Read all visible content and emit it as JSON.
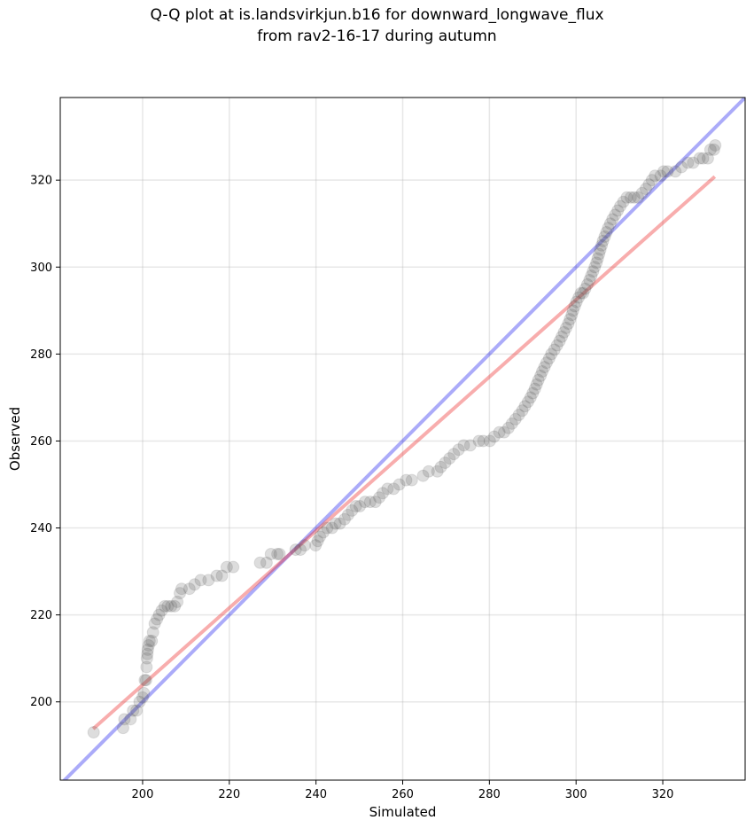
{
  "chart_data": {
    "type": "scatter",
    "title_line1": "Q-Q plot at is.landsvirkjun.b16 for downward_longwave_flux",
    "title_line2": "from rav2-16-17 during autumn",
    "xlabel": "Simulated",
    "ylabel": "Observed",
    "xlim": [
      181,
      339
    ],
    "ylim": [
      182,
      339
    ],
    "xticks": [
      200,
      220,
      240,
      260,
      280,
      300,
      320
    ],
    "yticks": [
      200,
      220,
      240,
      260,
      280,
      300,
      320
    ],
    "grid": true,
    "identity_line": {
      "name": "1:1 line",
      "color": "#0000ee",
      "from": [
        181,
        181
      ],
      "to": [
        339,
        339
      ]
    },
    "fit_line": {
      "name": "linear fit",
      "color": "#ee3333",
      "from": [
        188.6,
        193.8
      ],
      "to": [
        332.0,
        320.8
      ]
    },
    "points_color": "#555555",
    "points": [
      [
        188.7,
        193
      ],
      [
        195.5,
        194
      ],
      [
        195.8,
        196
      ],
      [
        197.2,
        196
      ],
      [
        197.8,
        198
      ],
      [
        198.6,
        198
      ],
      [
        199.3,
        200
      ],
      [
        200,
        201
      ],
      [
        200.3,
        202
      ],
      [
        200.5,
        205
      ],
      [
        200.8,
        205
      ],
      [
        200.9,
        208
      ],
      [
        201,
        210
      ],
      [
        201.1,
        211
      ],
      [
        201.2,
        212
      ],
      [
        201.4,
        213
      ],
      [
        201.6,
        214
      ],
      [
        202.1,
        214
      ],
      [
        202.4,
        216
      ],
      [
        202.8,
        218
      ],
      [
        203.3,
        219
      ],
      [
        203.8,
        220
      ],
      [
        204.4,
        221
      ],
      [
        205.1,
        222
      ],
      [
        205.8,
        222
      ],
      [
        206.6,
        222
      ],
      [
        207.4,
        222
      ],
      [
        208,
        223
      ],
      [
        208.6,
        225
      ],
      [
        209,
        226
      ],
      [
        210.8,
        226
      ],
      [
        212,
        227
      ],
      [
        213.4,
        228
      ],
      [
        215.2,
        228
      ],
      [
        217.1,
        229
      ],
      [
        218.3,
        229
      ],
      [
        219.4,
        231
      ],
      [
        220.9,
        231
      ],
      [
        227.1,
        232
      ],
      [
        228.6,
        232
      ],
      [
        229.6,
        234
      ],
      [
        231.1,
        234
      ],
      [
        231.6,
        234
      ],
      [
        235.3,
        235
      ],
      [
        236.4,
        235
      ],
      [
        237.4,
        236
      ],
      [
        239.9,
        236
      ],
      [
        240.4,
        237
      ],
      [
        240.9,
        238
      ],
      [
        241.7,
        239
      ],
      [
        242.6,
        240
      ],
      [
        243.7,
        240
      ],
      [
        244.5,
        241
      ],
      [
        245.5,
        241
      ],
      [
        246.6,
        242
      ],
      [
        247.4,
        243
      ],
      [
        248.3,
        244
      ],
      [
        249.2,
        245
      ],
      [
        250.1,
        245
      ],
      [
        251.3,
        246
      ],
      [
        252.5,
        246
      ],
      [
        253.7,
        246
      ],
      [
        254.6,
        247
      ],
      [
        255.4,
        248
      ],
      [
        256.5,
        249
      ],
      [
        257.9,
        249
      ],
      [
        259.2,
        250
      ],
      [
        260.8,
        251
      ],
      [
        262.1,
        251
      ],
      [
        264.7,
        252
      ],
      [
        266,
        253
      ],
      [
        268,
        253
      ],
      [
        268.8,
        254
      ],
      [
        269.8,
        255
      ],
      [
        270.8,
        256
      ],
      [
        271.8,
        257
      ],
      [
        272.9,
        258
      ],
      [
        274.1,
        259
      ],
      [
        275.6,
        259
      ],
      [
        277.6,
        260
      ],
      [
        278.6,
        260
      ],
      [
        280.1,
        260
      ],
      [
        281.1,
        261
      ],
      [
        282.3,
        262
      ],
      [
        283.4,
        262
      ],
      [
        284.4,
        263
      ],
      [
        285.2,
        264
      ],
      [
        286,
        265
      ],
      [
        286.8,
        266
      ],
      [
        287.6,
        267
      ],
      [
        288.2,
        268
      ],
      [
        288.9,
        269
      ],
      [
        289.5,
        270
      ],
      [
        290,
        271
      ],
      [
        290.5,
        272
      ],
      [
        290.9,
        273
      ],
      [
        291.3,
        274
      ],
      [
        291.8,
        275
      ],
      [
        292.2,
        276
      ],
      [
        292.7,
        277
      ],
      [
        293.2,
        278
      ],
      [
        293.8,
        279
      ],
      [
        294.3,
        280
      ],
      [
        295,
        281
      ],
      [
        295.6,
        282
      ],
      [
        296.2,
        283
      ],
      [
        296.7,
        284
      ],
      [
        297.2,
        285
      ],
      [
        297.7,
        286
      ],
      [
        298.2,
        287
      ],
      [
        298.6,
        288
      ],
      [
        299,
        289
      ],
      [
        299.3,
        290
      ],
      [
        299.7,
        291
      ],
      [
        300.1,
        292
      ],
      [
        300.6,
        293
      ],
      [
        301.1,
        294
      ],
      [
        301.6,
        294
      ],
      [
        302.1,
        295
      ],
      [
        302.6,
        296
      ],
      [
        303.1,
        297
      ],
      [
        303.5,
        298
      ],
      [
        303.9,
        299
      ],
      [
        304.3,
        300
      ],
      [
        304.7,
        301
      ],
      [
        305,
        302
      ],
      [
        305.3,
        303
      ],
      [
        305.6,
        304
      ],
      [
        305.9,
        305
      ],
      [
        306.2,
        306
      ],
      [
        306.6,
        307
      ],
      [
        307,
        308
      ],
      [
        307.4,
        309
      ],
      [
        307.9,
        310
      ],
      [
        308.4,
        311
      ],
      [
        309,
        312
      ],
      [
        309.6,
        313
      ],
      [
        310.2,
        314
      ],
      [
        310.9,
        315
      ],
      [
        311.7,
        316
      ],
      [
        312.6,
        316
      ],
      [
        313.4,
        316
      ],
      [
        314.3,
        316
      ],
      [
        315.2,
        317
      ],
      [
        316.1,
        318
      ],
      [
        316.8,
        319
      ],
      [
        317.5,
        320
      ],
      [
        318.2,
        321
      ],
      [
        319.5,
        321
      ],
      [
        320.2,
        322
      ],
      [
        321.1,
        322
      ],
      [
        322.9,
        322
      ],
      [
        324.3,
        323
      ],
      [
        325.8,
        324
      ],
      [
        327,
        324
      ],
      [
        328.5,
        325
      ],
      [
        329.3,
        325
      ],
      [
        330.4,
        325
      ],
      [
        331,
        327
      ],
      [
        331.8,
        327
      ],
      [
        332.1,
        328
      ]
    ]
  }
}
